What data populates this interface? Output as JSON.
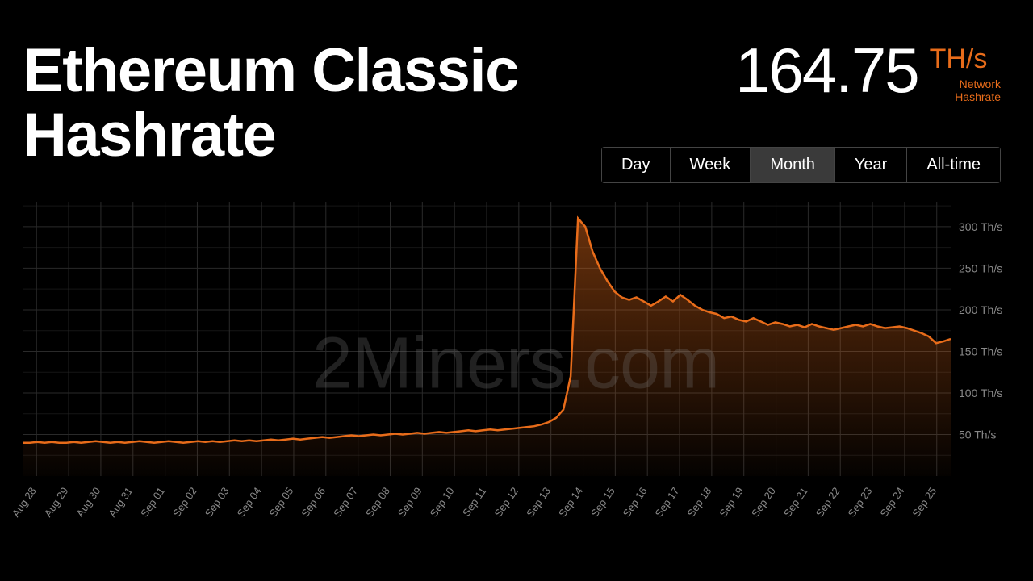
{
  "title": "Ethereum Classic Hashrate",
  "value": "164.75",
  "unit": "TH/s",
  "sublabel": "Network Hashrate",
  "watermark": "2Miners.com",
  "colors": {
    "background": "#000000",
    "text": "#ffffff",
    "accent": "#e86c1a",
    "grid": "#2a2a2a",
    "axis_label": "#888888",
    "tab_border": "#444444",
    "tab_active_bg": "#3a3a3a",
    "watermark": "rgba(120,120,120,0.28)"
  },
  "tabs": [
    {
      "label": "Day",
      "active": false
    },
    {
      "label": "Week",
      "active": false
    },
    {
      "label": "Month",
      "active": true
    },
    {
      "label": "Year",
      "active": false
    },
    {
      "label": "All-time",
      "active": false
    }
  ],
  "chart": {
    "type": "area",
    "ylim": [
      0,
      330
    ],
    "y_ticks": [
      50,
      100,
      150,
      200,
      250,
      300
    ],
    "y_tick_suffix": " Th/s",
    "x_labels": [
      "Aug 28",
      "Aug 29",
      "Aug 30",
      "Aug 31",
      "Sep 01",
      "Sep 02",
      "Sep 03",
      "Sep 04",
      "Sep 05",
      "Sep 06",
      "Sep 07",
      "Sep 08",
      "Sep 09",
      "Sep 10",
      "Sep 11",
      "Sep 12",
      "Sep 13",
      "Sep 14",
      "Sep 15",
      "Sep 16",
      "Sep 17",
      "Sep 18",
      "Sep 19",
      "Sep 20",
      "Sep 21",
      "Sep 22",
      "Sep 23",
      "Sep 24",
      "Sep 25"
    ],
    "line_color": "#e86c1a",
    "line_width": 2.5,
    "fill_gradient_top": "rgba(232,108,26,0.45)",
    "fill_gradient_bottom": "rgba(232,108,26,0.02)",
    "data": [
      40,
      40,
      41,
      40,
      41,
      40,
      40,
      41,
      40,
      41,
      42,
      41,
      40,
      41,
      40,
      41,
      42,
      41,
      40,
      41,
      42,
      41,
      40,
      41,
      42,
      41,
      42,
      41,
      42,
      43,
      42,
      43,
      42,
      43,
      44,
      43,
      44,
      45,
      44,
      45,
      46,
      47,
      46,
      47,
      48,
      49,
      48,
      49,
      50,
      49,
      50,
      51,
      50,
      51,
      52,
      51,
      52,
      53,
      52,
      53,
      54,
      55,
      54,
      55,
      56,
      55,
      56,
      57,
      58,
      59,
      60,
      62,
      65,
      70,
      80,
      120,
      310,
      300,
      270,
      250,
      235,
      222,
      215,
      212,
      215,
      210,
      205,
      210,
      216,
      210,
      218,
      212,
      205,
      200,
      197,
      195,
      190,
      192,
      188,
      186,
      190,
      186,
      182,
      185,
      183,
      180,
      182,
      179,
      183,
      180,
      178,
      176,
      178,
      180,
      182,
      180,
      183,
      180,
      178,
      179,
      180,
      178,
      175,
      172,
      168,
      160,
      162,
      165
    ]
  }
}
